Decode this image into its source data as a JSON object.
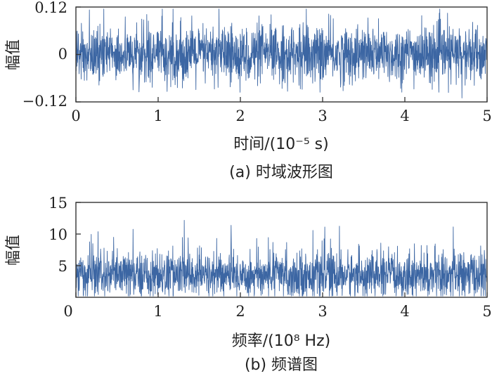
{
  "colors": {
    "trace": "#3c66a3",
    "axis": "#333333",
    "text": "#222222"
  },
  "chart_data": [
    {
      "type": "line",
      "subplot": "a",
      "caption": "(a) 时域波形图",
      "xlabel": "时间/(10⁻⁵ s)",
      "ylabel": "幅值",
      "xlim": [
        0,
        5
      ],
      "ylim": [
        -0.12,
        0.12
      ],
      "xticks": [
        0,
        1,
        2,
        3,
        4,
        5
      ],
      "xtick_labels": [
        "0",
        "1",
        "2",
        "3",
        "4",
        "5"
      ],
      "yticks": [
        -0.12,
        0,
        0.12
      ],
      "ytick_labels": [
        "−0.12",
        "0",
        "0.12"
      ],
      "grid": false,
      "legend": "none",
      "signal": {
        "kind": "random-noise",
        "mean": 0,
        "typical_amplitude": 0.04,
        "peak_min": -0.11,
        "peak_max": 0.115
      }
    },
    {
      "type": "line",
      "subplot": "b",
      "caption": "(b) 频谱图",
      "xlabel": "频率/(10⁸ Hz)",
      "ylabel": "幅值",
      "xlim": [
        0,
        5
      ],
      "ylim": [
        0,
        15
      ],
      "xticks": [
        0,
        1,
        2,
        3,
        4,
        5
      ],
      "xtick_labels": [
        "0",
        "1",
        "2",
        "3",
        "4",
        "5"
      ],
      "yticks": [
        5,
        10,
        15
      ],
      "ytick_labels": [
        "5",
        "10",
        "15"
      ],
      "grid": false,
      "legend": "none",
      "signal": {
        "kind": "flat-noise-spectrum",
        "mean": 3.5,
        "floor": 0,
        "peak_max": 12.2
      }
    }
  ]
}
